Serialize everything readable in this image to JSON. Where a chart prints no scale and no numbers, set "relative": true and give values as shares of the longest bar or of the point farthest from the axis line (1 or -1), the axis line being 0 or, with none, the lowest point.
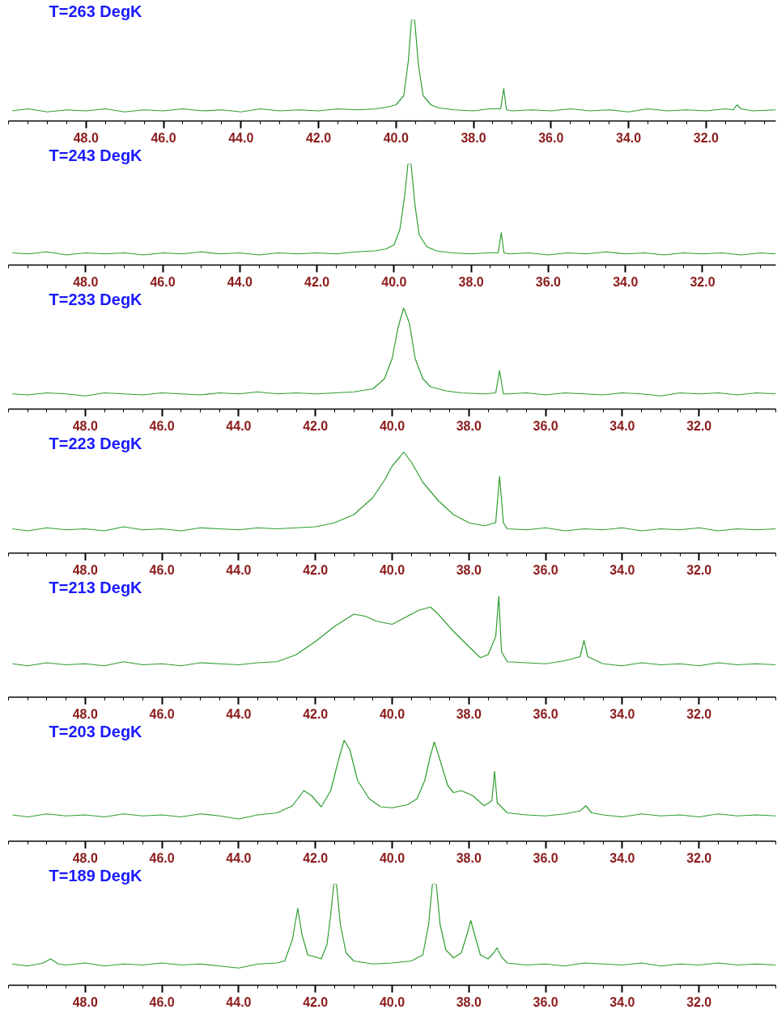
{
  "chart_data": [
    {
      "type": "line",
      "title": "T=263 DegK",
      "relative": true,
      "color": "#2e9e2e",
      "xlim": [
        50,
        30.2
      ],
      "xticks": [
        {
          "value": 48,
          "label": "48.0"
        },
        {
          "value": 46,
          "label": "46.0"
        },
        {
          "value": 44,
          "label": "44.0"
        },
        {
          "value": 42,
          "label": "42.0"
        },
        {
          "value": 40,
          "label": "40.0"
        },
        {
          "value": 38,
          "label": "38.0"
        },
        {
          "value": 36,
          "label": "36.0"
        },
        {
          "value": 34,
          "label": "34.0"
        },
        {
          "value": 32,
          "label": "32.0"
        }
      ],
      "tick_labels": "x",
      "grid": false,
      "x": [
        49.9,
        49.5,
        49,
        48.5,
        48,
        47.5,
        47,
        46.5,
        46,
        45.5,
        45,
        44.5,
        44,
        43.5,
        43,
        42.5,
        42,
        41.5,
        41,
        40.5,
        40.2,
        40.0,
        39.8,
        39.68,
        39.6,
        39.52,
        39.42,
        39.3,
        39.1,
        38.9,
        38.5,
        38,
        37.6,
        37.3,
        37.22,
        37.15,
        37,
        36.5,
        36,
        35.5,
        35,
        34.5,
        34,
        33.5,
        33,
        32.5,
        32,
        31.5,
        31.3,
        31.2,
        31.1,
        30.8,
        30.2
      ],
      "values": [
        0.1,
        0.12,
        0.09,
        0.11,
        0.1,
        0.12,
        0.09,
        0.11,
        0.1,
        0.12,
        0.1,
        0.11,
        0.09,
        0.12,
        0.1,
        0.11,
        0.1,
        0.12,
        0.11,
        0.12,
        0.14,
        0.16,
        0.25,
        0.6,
        1,
        1,
        0.55,
        0.25,
        0.16,
        0.13,
        0.11,
        0.1,
        0.12,
        0.12,
        0.32,
        0.11,
        0.1,
        0.11,
        0.1,
        0.12,
        0.1,
        0.11,
        0.09,
        0.12,
        0.1,
        0.11,
        0.1,
        0.12,
        0.11,
        0.16,
        0.12,
        0.1,
        0.11
      ]
    },
    {
      "type": "line",
      "title": "T=243 DegK",
      "relative": true,
      "color": "#2e9e2e",
      "xlim": [
        50,
        30.1
      ],
      "xticks": [
        {
          "value": 48,
          "label": "48.0"
        },
        {
          "value": 46,
          "label": "46.0"
        },
        {
          "value": 44,
          "label": "44.0"
        },
        {
          "value": 42,
          "label": "42.0"
        },
        {
          "value": 40,
          "label": "40.0"
        },
        {
          "value": 38,
          "label": "38.0"
        },
        {
          "value": 36,
          "label": "36.0"
        },
        {
          "value": 34,
          "label": "34.0"
        },
        {
          "value": 32,
          "label": "32.0"
        }
      ],
      "tick_labels": "x",
      "grid": false,
      "x": [
        49.9,
        49.5,
        49,
        48.5,
        48,
        47.5,
        47,
        46.5,
        46,
        45.5,
        45,
        44.5,
        44,
        43.5,
        43,
        42.5,
        42,
        41.5,
        41,
        40.5,
        40.2,
        40.0,
        39.85,
        39.72,
        39.64,
        39.56,
        39.46,
        39.35,
        39.15,
        38.9,
        38.5,
        38,
        37.6,
        37.3,
        37.22,
        37.15,
        37,
        36.5,
        36,
        35.5,
        35,
        34.5,
        34,
        33.5,
        33,
        32.5,
        32,
        31.5,
        31,
        30.5,
        30.1
      ],
      "values": [
        0.12,
        0.11,
        0.13,
        0.1,
        0.12,
        0.11,
        0.12,
        0.1,
        0.12,
        0.11,
        0.13,
        0.11,
        0.12,
        0.1,
        0.12,
        0.11,
        0.12,
        0.11,
        0.13,
        0.14,
        0.16,
        0.2,
        0.35,
        0.7,
        1,
        1,
        0.6,
        0.3,
        0.18,
        0.14,
        0.12,
        0.11,
        0.12,
        0.12,
        0.32,
        0.12,
        0.11,
        0.12,
        0.1,
        0.12,
        0.11,
        0.13,
        0.11,
        0.12,
        0.1,
        0.12,
        0.11,
        0.12,
        0.1,
        0.12,
        0.11
      ]
    },
    {
      "type": "line",
      "title": "T=233 DegK",
      "relative": true,
      "color": "#2e9e2e",
      "xlim": [
        50,
        30
      ],
      "xticks": [
        {
          "value": 48,
          "label": "48.0"
        },
        {
          "value": 46,
          "label": "46.0"
        },
        {
          "value": 44,
          "label": "44.0"
        },
        {
          "value": 42,
          "label": "42.0"
        },
        {
          "value": 40,
          "label": "40.0"
        },
        {
          "value": 38,
          "label": "38.0"
        },
        {
          "value": 36,
          "label": "36.0"
        },
        {
          "value": 34,
          "label": "34.0"
        },
        {
          "value": 32,
          "label": "32.0"
        }
      ],
      "tick_labels": "x",
      "grid": false,
      "x": [
        49.9,
        49.5,
        49,
        48.5,
        48,
        47.5,
        47,
        46.5,
        46,
        45.5,
        45,
        44.5,
        44,
        43.5,
        43,
        42.5,
        42,
        41.5,
        41,
        40.5,
        40.2,
        40.0,
        39.85,
        39.7,
        39.55,
        39.4,
        39.2,
        39.0,
        38.6,
        38.2,
        37.6,
        37.3,
        37.2,
        37.1,
        37,
        36.5,
        36,
        35.5,
        35,
        34.5,
        34,
        33.5,
        33,
        32.5,
        32,
        31.5,
        31,
        30.5,
        30
      ],
      "values": [
        0.15,
        0.14,
        0.16,
        0.15,
        0.13,
        0.16,
        0.15,
        0.14,
        0.16,
        0.15,
        0.14,
        0.16,
        0.15,
        0.17,
        0.15,
        0.16,
        0.15,
        0.16,
        0.17,
        0.2,
        0.3,
        0.5,
        0.8,
        1,
        0.85,
        0.5,
        0.3,
        0.22,
        0.18,
        0.16,
        0.15,
        0.16,
        0.38,
        0.15,
        0.15,
        0.16,
        0.14,
        0.16,
        0.15,
        0.14,
        0.16,
        0.15,
        0.13,
        0.16,
        0.15,
        0.16,
        0.14,
        0.16,
        0.15
      ]
    },
    {
      "type": "line",
      "title": "T=223 DegK",
      "relative": true,
      "color": "#2e9e2e",
      "xlim": [
        50,
        30
      ],
      "xticks": [
        {
          "value": 48,
          "label": "48.0"
        },
        {
          "value": 46,
          "label": "46.0"
        },
        {
          "value": 44,
          "label": "44.0"
        },
        {
          "value": 42,
          "label": "42.0"
        },
        {
          "value": 40,
          "label": "40.0"
        },
        {
          "value": 38,
          "label": "38.0"
        },
        {
          "value": 36,
          "label": "36.0"
        },
        {
          "value": 34,
          "label": "34.0"
        },
        {
          "value": 32,
          "label": "32.0"
        }
      ],
      "tick_labels": "x",
      "grid": false,
      "x": [
        49.9,
        49.5,
        49,
        48.5,
        48,
        47.5,
        47,
        46.5,
        46,
        45.5,
        45,
        44.5,
        44,
        43.5,
        43,
        42.5,
        42,
        41.5,
        41,
        40.5,
        40.2,
        40.0,
        39.8,
        39.7,
        39.5,
        39.2,
        38.8,
        38.4,
        38,
        37.6,
        37.3,
        37.2,
        37.1,
        37,
        36.5,
        36,
        35.5,
        35,
        34.5,
        34,
        33.5,
        33,
        32.5,
        32,
        31.5,
        31,
        30.5,
        30
      ],
      "values": [
        0.24,
        0.22,
        0.25,
        0.23,
        0.24,
        0.22,
        0.26,
        0.23,
        0.24,
        0.22,
        0.25,
        0.24,
        0.23,
        0.25,
        0.24,
        0.25,
        0.26,
        0.3,
        0.38,
        0.55,
        0.72,
        0.86,
        0.95,
        1,
        0.9,
        0.7,
        0.52,
        0.38,
        0.3,
        0.27,
        0.3,
        0.76,
        0.3,
        0.24,
        0.23,
        0.25,
        0.22,
        0.24,
        0.23,
        0.25,
        0.22,
        0.24,
        0.23,
        0.25,
        0.22,
        0.24,
        0.23,
        0.24
      ]
    },
    {
      "type": "line",
      "title": "T=213 DegK",
      "relative": true,
      "color": "#2e9e2e",
      "xlim": [
        50,
        30
      ],
      "xticks": [
        {
          "value": 48,
          "label": "48.0"
        },
        {
          "value": 46,
          "label": "46.0"
        },
        {
          "value": 44,
          "label": "44.0"
        },
        {
          "value": 42,
          "label": "42.0"
        },
        {
          "value": 40,
          "label": "40.0"
        },
        {
          "value": 38,
          "label": "38.0"
        },
        {
          "value": 36,
          "label": "36.0"
        },
        {
          "value": 34,
          "label": "34.0"
        },
        {
          "value": 32,
          "label": "32.0"
        }
      ],
      "tick_labels": "x",
      "grid": false,
      "x": [
        49.9,
        49.5,
        49,
        48.5,
        48,
        47.5,
        47,
        46.5,
        46,
        45.5,
        45,
        44.5,
        44,
        43.5,
        43,
        42.5,
        42,
        41.5,
        41,
        40.7,
        40.4,
        40,
        39.6,
        39.3,
        39.0,
        38.8,
        38.4,
        38,
        37.7,
        37.5,
        37.3,
        37.22,
        37.15,
        37,
        36.5,
        36,
        35.5,
        35.1,
        35.0,
        34.9,
        34.5,
        34,
        33.5,
        33,
        32.5,
        32,
        31.5,
        31,
        30.5,
        30
      ],
      "values": [
        0.33,
        0.31,
        0.34,
        0.32,
        0.33,
        0.31,
        0.35,
        0.32,
        0.33,
        0.31,
        0.34,
        0.33,
        0.32,
        0.34,
        0.35,
        0.42,
        0.55,
        0.7,
        0.82,
        0.8,
        0.75,
        0.72,
        0.8,
        0.86,
        0.89,
        0.82,
        0.65,
        0.5,
        0.39,
        0.42,
        0.6,
        1,
        0.45,
        0.35,
        0.34,
        0.33,
        0.36,
        0.4,
        0.56,
        0.4,
        0.33,
        0.31,
        0.34,
        0.32,
        0.33,
        0.31,
        0.34,
        0.32,
        0.33,
        0.32
      ]
    },
    {
      "type": "line",
      "title": "T=203 DegK",
      "relative": true,
      "color": "#2e9e2e",
      "xlim": [
        50,
        30
      ],
      "xticks": [
        {
          "value": 48,
          "label": "48.0"
        },
        {
          "value": 46,
          "label": "46.0"
        },
        {
          "value": 44,
          "label": "44.0"
        },
        {
          "value": 42,
          "label": "42.0"
        },
        {
          "value": 40,
          "label": "40.0"
        },
        {
          "value": 38,
          "label": "38.0"
        },
        {
          "value": 36,
          "label": "36.0"
        },
        {
          "value": 34,
          "label": "34.0"
        },
        {
          "value": 32,
          "label": "32.0"
        }
      ],
      "tick_labels": "x",
      "grid": false,
      "x": [
        49.9,
        49.5,
        49,
        48.5,
        48,
        47.5,
        47,
        46.5,
        46,
        45.5,
        45,
        44.5,
        44,
        43.5,
        43,
        42.6,
        42.3,
        42.1,
        41.85,
        41.6,
        41.4,
        41.25,
        41.1,
        40.9,
        40.6,
        40.3,
        40.0,
        39.6,
        39.35,
        39.15,
        39.0,
        38.9,
        38.75,
        38.55,
        38.4,
        38.2,
        37.9,
        37.6,
        37.4,
        37.33,
        37.26,
        37.0,
        36.5,
        36,
        35.5,
        35.1,
        34.95,
        34.8,
        34.5,
        34,
        33.5,
        33,
        32.5,
        32,
        31.5,
        31,
        30.5,
        30
      ],
      "values": [
        0.26,
        0.24,
        0.27,
        0.25,
        0.26,
        0.24,
        0.27,
        0.25,
        0.26,
        0.24,
        0.27,
        0.25,
        0.22,
        0.26,
        0.28,
        0.35,
        0.5,
        0.45,
        0.34,
        0.5,
        0.8,
        1,
        0.9,
        0.6,
        0.42,
        0.34,
        0.33,
        0.36,
        0.42,
        0.6,
        0.85,
        0.98,
        0.8,
        0.55,
        0.48,
        0.5,
        0.45,
        0.35,
        0.4,
        0.69,
        0.38,
        0.28,
        0.26,
        0.25,
        0.27,
        0.3,
        0.35,
        0.28,
        0.26,
        0.24,
        0.27,
        0.25,
        0.26,
        0.24,
        0.27,
        0.25,
        0.26,
        0.25
      ]
    },
    {
      "type": "line",
      "title": "T=189 DegK",
      "relative": true,
      "color": "#2e9e2e",
      "xlim": [
        50,
        30
      ],
      "xticks": [
        {
          "value": 48,
          "label": "48.0"
        },
        {
          "value": 46,
          "label": "46.0"
        },
        {
          "value": 44,
          "label": "44.0"
        },
        {
          "value": 42,
          "label": "42.0"
        },
        {
          "value": 40,
          "label": "40.0"
        },
        {
          "value": 38,
          "label": "38.0"
        },
        {
          "value": 36,
          "label": "36.0"
        },
        {
          "value": 34,
          "label": "34.0"
        },
        {
          "value": 32,
          "label": "32.0"
        }
      ],
      "tick_labels": "x",
      "grid": false,
      "x": [
        49.9,
        49.5,
        49.1,
        48.9,
        48.7,
        48.5,
        48,
        47.5,
        47,
        46.5,
        46,
        45.5,
        45,
        44.5,
        44,
        43.5,
        43,
        42.8,
        42.6,
        42.46,
        42.35,
        42.2,
        42.0,
        41.85,
        41.7,
        41.6,
        41.52,
        41.45,
        41.35,
        41.2,
        41.0,
        40.5,
        40,
        39.5,
        39.2,
        39.05,
        38.95,
        38.85,
        38.75,
        38.6,
        38.4,
        38.2,
        38.05,
        37.95,
        37.85,
        37.7,
        37.5,
        37.35,
        37.27,
        37.15,
        37.0,
        36.5,
        36,
        35.5,
        35,
        34.5,
        34,
        33.5,
        33,
        32.5,
        32,
        31.5,
        31,
        30.5,
        30
      ],
      "values": [
        0.21,
        0.19,
        0.22,
        0.26,
        0.21,
        0.2,
        0.22,
        0.19,
        0.21,
        0.2,
        0.22,
        0.2,
        0.21,
        0.19,
        0.17,
        0.21,
        0.22,
        0.24,
        0.45,
        0.76,
        0.5,
        0.3,
        0.28,
        0.26,
        0.4,
        0.7,
        1,
        1,
        0.6,
        0.32,
        0.24,
        0.21,
        0.22,
        0.24,
        0.3,
        0.6,
        1,
        1,
        0.6,
        0.35,
        0.27,
        0.32,
        0.5,
        0.64,
        0.5,
        0.3,
        0.26,
        0.32,
        0.37,
        0.28,
        0.22,
        0.2,
        0.21,
        0.19,
        0.22,
        0.21,
        0.2,
        0.22,
        0.19,
        0.21,
        0.2,
        0.22,
        0.2,
        0.21,
        0.2
      ]
    }
  ]
}
